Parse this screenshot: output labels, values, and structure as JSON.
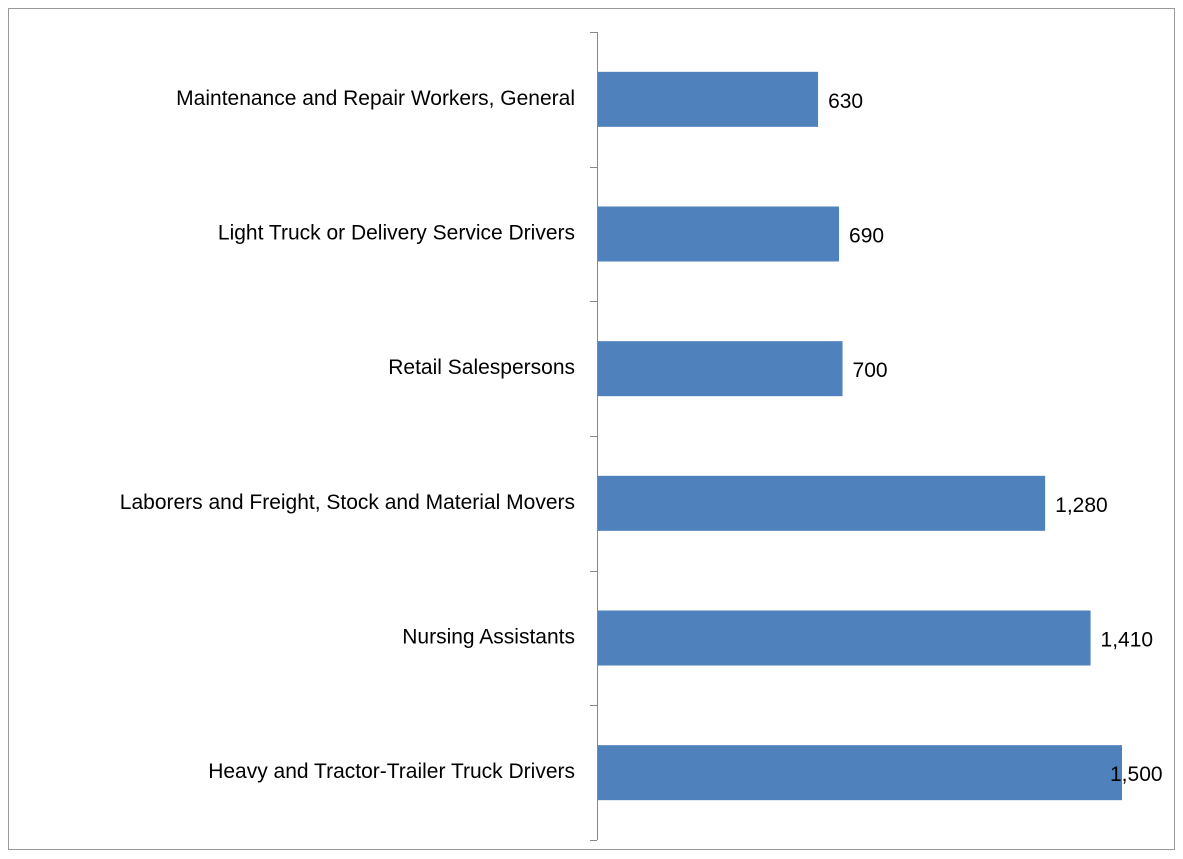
{
  "chart_data": {
    "type": "bar",
    "orientation": "horizontal",
    "categories": [
      "Maintenance and Repair Workers, General",
      "Light Truck or Delivery Service Drivers",
      "Retail Salespersons",
      "Laborers and Freight, Stock and Material Movers",
      "Nursing Assistants",
      "Heavy and Tractor-Trailer Truck Drivers"
    ],
    "values": [
      630,
      690,
      700,
      1280,
      1410,
      1500
    ],
    "value_labels": [
      "630",
      "690",
      "700",
      "1,280",
      "1,410",
      "1,500"
    ],
    "color": "#4f81bd"
  }
}
